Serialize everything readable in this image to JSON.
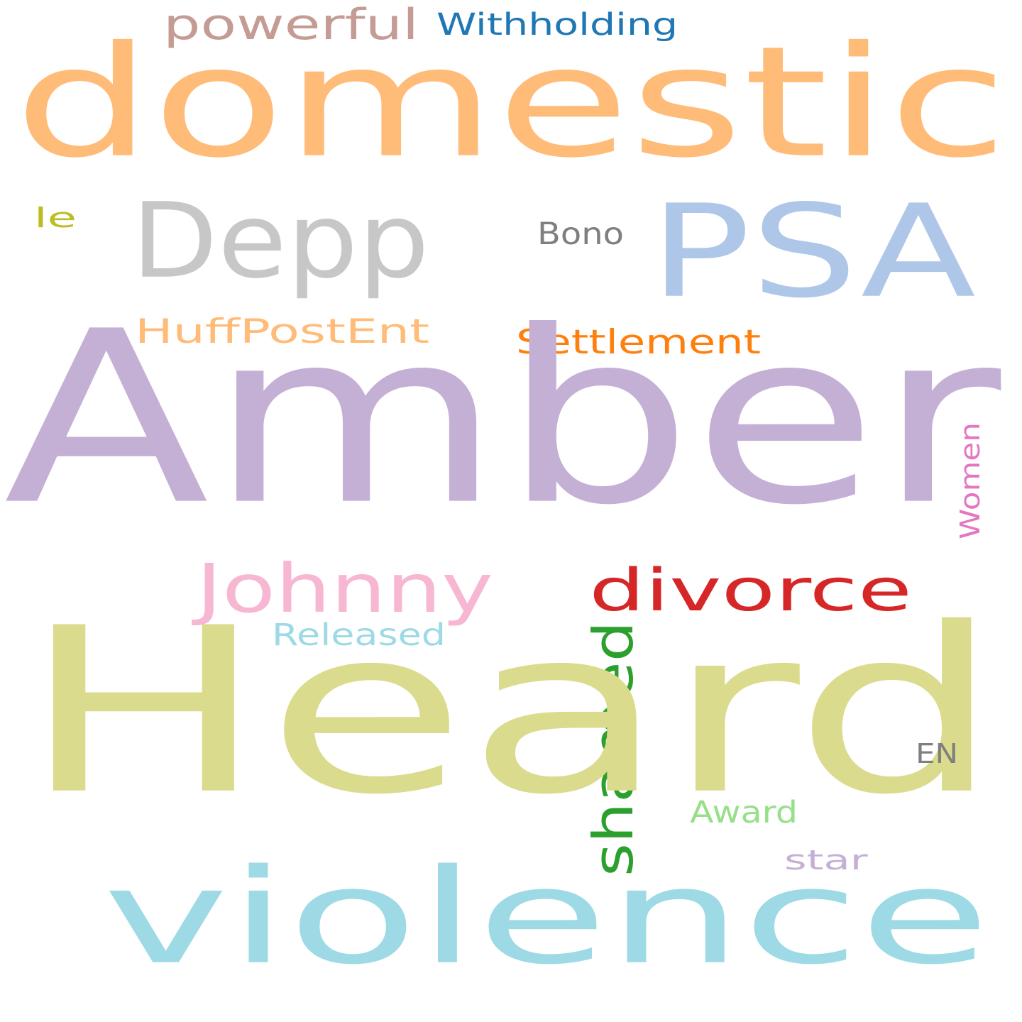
{
  "words": [
    {
      "key": "domestic",
      "text": "domestic",
      "color": "#ffbb78",
      "orientation": "horizontal"
    },
    {
      "key": "powerful",
      "text": "powerful",
      "color": "#c49c94",
      "orientation": "horizontal"
    },
    {
      "key": "withholding",
      "text": "Withholding",
      "color": "#1f77b4",
      "orientation": "horizontal"
    },
    {
      "key": "depp",
      "text": "Depp",
      "color": "#c7c7c7",
      "orientation": "horizontal"
    },
    {
      "key": "psa",
      "text": "PSA",
      "color": "#aec7e8",
      "orientation": "horizontal"
    },
    {
      "key": "le",
      "text": "le",
      "color": "#bcbd22",
      "orientation": "horizontal"
    },
    {
      "key": "bono",
      "text": "Bono",
      "color": "#7f7f7f",
      "orientation": "horizontal"
    },
    {
      "key": "huffpostent",
      "text": "HuffPostEnt",
      "color": "#ffbb78",
      "orientation": "horizontal"
    },
    {
      "key": "settlement",
      "text": "Settlement",
      "color": "#ff7f0e",
      "orientation": "horizontal"
    },
    {
      "key": "amber",
      "text": "Amber",
      "color": "#c5b0d5",
      "orientation": "horizontal"
    },
    {
      "key": "women",
      "text": "Women",
      "color": "#e377c2",
      "orientation": "vertical"
    },
    {
      "key": "johnny",
      "text": "Johnny",
      "color": "#f7b6d2",
      "orientation": "horizontal"
    },
    {
      "key": "divorce",
      "text": "divorce",
      "color": "#d62728",
      "orientation": "horizontal"
    },
    {
      "key": "shamed",
      "text": "shamed",
      "color": "#2ca02c",
      "orientation": "vertical"
    },
    {
      "key": "released",
      "text": "Released",
      "color": "#9edae5",
      "orientation": "horizontal"
    },
    {
      "key": "heard",
      "text": "Heard",
      "color": "#dbdb8d",
      "orientation": "horizontal"
    },
    {
      "key": "en",
      "text": "EN",
      "color": "#7f7f7f",
      "orientation": "horizontal"
    },
    {
      "key": "award",
      "text": "Award",
      "color": "#98df8a",
      "orientation": "horizontal"
    },
    {
      "key": "star",
      "text": "star",
      "color": "#c5b0d5",
      "orientation": "horizontal"
    },
    {
      "key": "violence",
      "text": "violence",
      "color": "#9edae5",
      "orientation": "horizontal"
    }
  ]
}
